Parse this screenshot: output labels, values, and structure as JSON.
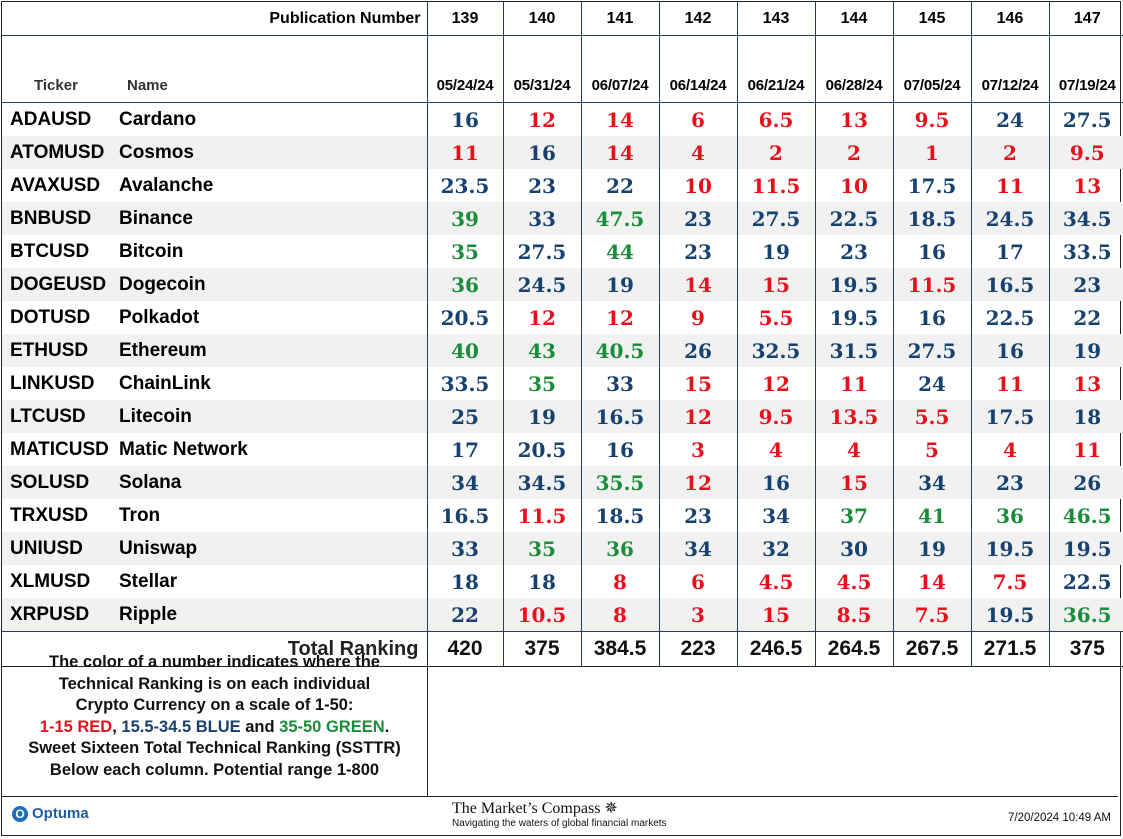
{
  "header": {
    "pub_label": "Publication Number",
    "ticker_label": "Ticker",
    "name_label": "Name",
    "pubs": [
      "139",
      "140",
      "141",
      "142",
      "143",
      "144",
      "145",
      "146",
      "147"
    ],
    "dates": [
      "05/24/24",
      "05/31/24",
      "06/07/24",
      "06/14/24",
      "06/21/24",
      "06/28/24",
      "07/05/24",
      "07/12/24",
      "07/19/24"
    ]
  },
  "rows": [
    {
      "ticker": "ADAUSD",
      "name": "Cardano",
      "values": [
        "16",
        "12",
        "14",
        "6",
        "6.5",
        "13",
        "9.5",
        "24",
        "27.5"
      ]
    },
    {
      "ticker": "ATOMUSD",
      "name": "Cosmos",
      "values": [
        "11",
        "16",
        "14",
        "4",
        "2",
        "2",
        "1",
        "2",
        "9.5"
      ]
    },
    {
      "ticker": "AVAXUSD",
      "name": "Avalanche",
      "values": [
        "23.5",
        "23",
        "22",
        "10",
        "11.5",
        "10",
        "17.5",
        "11",
        "13"
      ]
    },
    {
      "ticker": "BNBUSD",
      "name": "Binance",
      "values": [
        "39",
        "33",
        "47.5",
        "23",
        "27.5",
        "22.5",
        "18.5",
        "24.5",
        "34.5"
      ]
    },
    {
      "ticker": "BTCUSD",
      "name": "Bitcoin",
      "values": [
        "35",
        "27.5",
        "44",
        "23",
        "19",
        "23",
        "16",
        "17",
        "33.5"
      ]
    },
    {
      "ticker": "DOGEUSD",
      "name": "Dogecoin",
      "values": [
        "36",
        "24.5",
        "19",
        "14",
        "15",
        "19.5",
        "11.5",
        "16.5",
        "23"
      ]
    },
    {
      "ticker": "DOTUSD",
      "name": "Polkadot",
      "values": [
        "20.5",
        "12",
        "12",
        "9",
        "5.5",
        "19.5",
        "16",
        "22.5",
        "22"
      ]
    },
    {
      "ticker": "ETHUSD",
      "name": "Ethereum",
      "values": [
        "40",
        "43",
        "40.5",
        "26",
        "32.5",
        "31.5",
        "27.5",
        "16",
        "19"
      ]
    },
    {
      "ticker": "LINKUSD",
      "name": "ChainLink",
      "values": [
        "33.5",
        "35",
        "33",
        "15",
        "12",
        "11",
        "24",
        "11",
        "13"
      ]
    },
    {
      "ticker": "LTCUSD",
      "name": "Litecoin",
      "values": [
        "25",
        "19",
        "16.5",
        "12",
        "9.5",
        "13.5",
        "5.5",
        "17.5",
        "18"
      ]
    },
    {
      "ticker": "MATICUSD",
      "name": "Matic Network",
      "values": [
        "17",
        "20.5",
        "16",
        "3",
        "4",
        "4",
        "5",
        "4",
        "11"
      ]
    },
    {
      "ticker": "SOLUSD",
      "name": "Solana",
      "values": [
        "34",
        "34.5",
        "35.5",
        "12",
        "16",
        "15",
        "34",
        "23",
        "26"
      ]
    },
    {
      "ticker": "TRXUSD",
      "name": "Tron",
      "values": [
        "16.5",
        "11.5",
        "18.5",
        "23",
        "34",
        "37",
        "41",
        "36",
        "46.5"
      ]
    },
    {
      "ticker": "UNIUSD",
      "name": "Uniswap",
      "values": [
        "33",
        "35",
        "36",
        "34",
        "32",
        "30",
        "19",
        "19.5",
        "19.5"
      ]
    },
    {
      "ticker": "XLMUSD",
      "name": "Stellar",
      "values": [
        "18",
        "18",
        "8",
        "6",
        "4.5",
        "4.5",
        "14",
        "7.5",
        "22.5"
      ]
    },
    {
      "ticker": "XRPUSD",
      "name": "Ripple",
      "values": [
        "22",
        "10.5",
        "8",
        "3",
        "15",
        "8.5",
        "7.5",
        "19.5",
        "36.5"
      ]
    }
  ],
  "total": {
    "label": "Total Ranking",
    "values": [
      "420",
      "375",
      "384.5",
      "223",
      "246.5",
      "264.5",
      "267.5",
      "271.5",
      "375"
    ]
  },
  "colors": {
    "red": "#e8111b",
    "blue": "#17416e",
    "green": "#1b8c3a"
  },
  "legend": {
    "line1": "The color of a number indicates where the",
    "line2": "Technical Ranking is on each individual",
    "line3": "Crypto Currency on a scale of 1-50:",
    "red_part": "1-15 RED",
    "sep1": ", ",
    "blue_part": "15.5-34.5 BLUE",
    "sep2": " and ",
    "green_part": "35-50 GREEN",
    "end": ".",
    "line5": "Sweet Sixteen Total Technical Ranking (SSTTR)",
    "line6": "Below each column.   Potential range 1-800"
  },
  "footer": {
    "optuma": "Optuma",
    "compass_title": "The Market’s Compass",
    "compass_tagline": "Navigating the waters of global financial markets",
    "timestamp": "7/20/2024 10:49 AM"
  }
}
